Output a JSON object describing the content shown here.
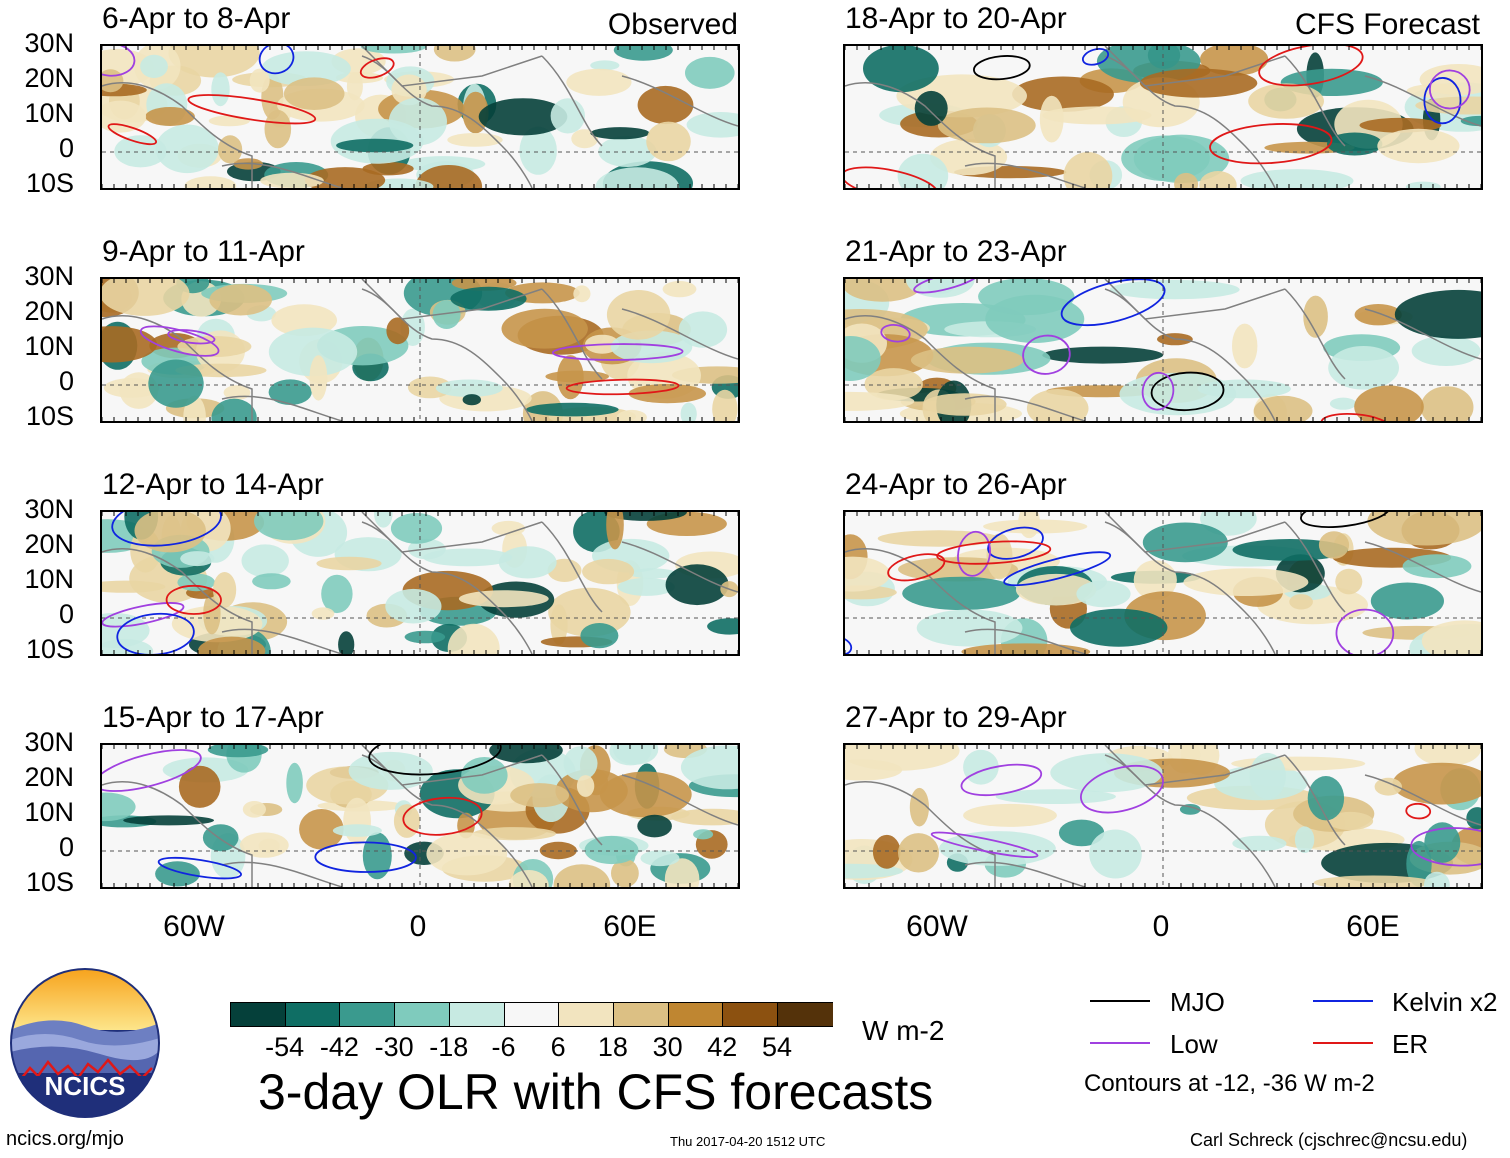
{
  "headers": {
    "observed": "Observed",
    "forecast": "CFS Forecast"
  },
  "observed_panels": [
    {
      "date": "6-Apr to 8-Apr"
    },
    {
      "date": "9-Apr to 11-Apr"
    },
    {
      "date": "12-Apr to 14-Apr"
    },
    {
      "date": "15-Apr to 17-Apr"
    }
  ],
  "forecast_panels": [
    {
      "date": "18-Apr to 20-Apr"
    },
    {
      "date": "21-Apr to 23-Apr"
    },
    {
      "date": "24-Apr to 26-Apr"
    },
    {
      "date": "27-Apr to 29-Apr"
    }
  ],
  "lat_labels": [
    "30N",
    "20N",
    "10N",
    "0",
    "10S"
  ],
  "lon_labels": [
    "60W",
    "0",
    "60E"
  ],
  "colorbar": {
    "labels": [
      "-54",
      "-42",
      "-30",
      "-18",
      "-6",
      "6",
      "18",
      "30",
      "42",
      "54"
    ],
    "colors": [
      "#05403a",
      "#0f6e64",
      "#3a9a8e",
      "#7fcbbd",
      "#c7eae2",
      "#f7f7f7",
      "#f2e4bf",
      "#dcc084",
      "#bf8631",
      "#8c5110",
      "#54320a"
    ],
    "units": "W m-2"
  },
  "title": "3-day OLR with CFS forecasts",
  "legend": {
    "items": [
      {
        "label": "MJO",
        "color": "#000000"
      },
      {
        "label": "Kelvin x2",
        "color": "#1024e0"
      },
      {
        "label": "Low",
        "color": "#a040e0"
      },
      {
        "label": "ER",
        "color": "#e01818"
      }
    ],
    "note": "Contours at -12, -36 W m-2"
  },
  "logo": {
    "text": "NCICS"
  },
  "footer": {
    "url": "ncics.org/mjo",
    "timestamp": "Thu 2017-04-20 1512 UTC",
    "author": "Carl Schreck (cjschrec@ncsu.edu)"
  }
}
